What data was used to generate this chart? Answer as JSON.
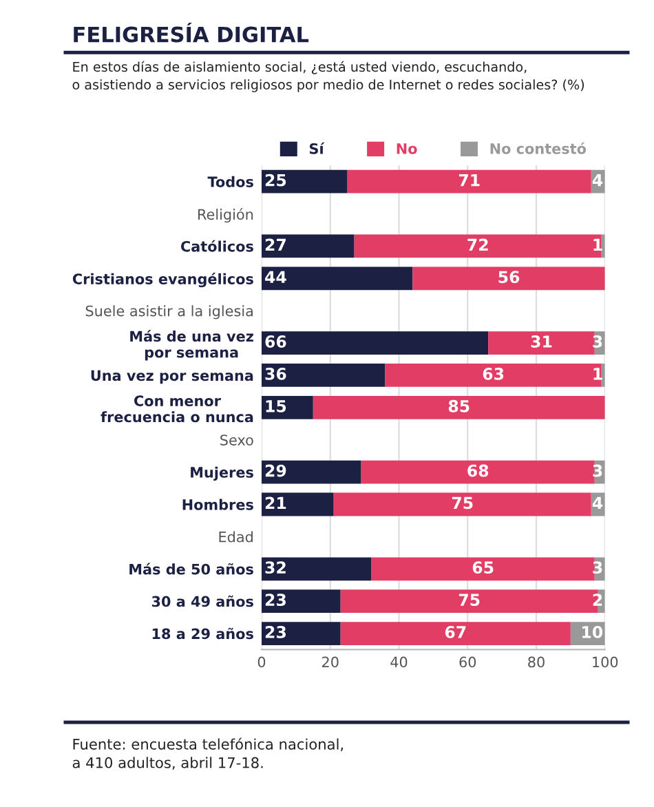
{
  "chart_data": {
    "type": "bar",
    "orientation": "horizontal",
    "stacked": true,
    "title": "FELIGRESÍA DIGITAL",
    "subtitle": "En estos días de aislamiento social, ¿está usted viendo, escuchando,\no asistiendo a servicios religiosos por medio de Internet o redes sociales? (%)",
    "categories": [
      "Todos",
      "Religión",
      "Católicos",
      "Cristianos evangélicos",
      "Suele asistir a la iglesia",
      "Más de una vez\npor semana",
      "Una vez por semana",
      "Con menor\nfrecuencia o nunca",
      "Sexo",
      "Mujeres",
      "Hombres",
      "Edad",
      "Más de 50 años",
      "30 a 49 años",
      "18 a 29 años"
    ],
    "series": [
      {
        "name": "Sí",
        "color": "#1c2143",
        "values": [
          25,
          null,
          27,
          44,
          null,
          66,
          36,
          15,
          null,
          29,
          21,
          null,
          32,
          23,
          23
        ]
      },
      {
        "name": "No",
        "color": "#e23d64",
        "values": [
          71,
          null,
          72,
          56,
          null,
          31,
          63,
          85,
          null,
          68,
          75,
          null,
          65,
          75,
          67
        ]
      },
      {
        "name": "No contestó",
        "color": "#999999",
        "values": [
          4,
          null,
          1,
          null,
          null,
          3,
          1,
          null,
          null,
          3,
          4,
          null,
          3,
          2,
          10
        ]
      }
    ],
    "xlim": [
      0,
      100
    ],
    "xticks": [
      0,
      20,
      40,
      60,
      80,
      100
    ],
    "grid": "x",
    "legend": "top",
    "data_labels": true,
    "annotations": [
      "Fuente: encuesta telefónica nacional,\na 410 adultos, abril 17-18."
    ]
  }
}
